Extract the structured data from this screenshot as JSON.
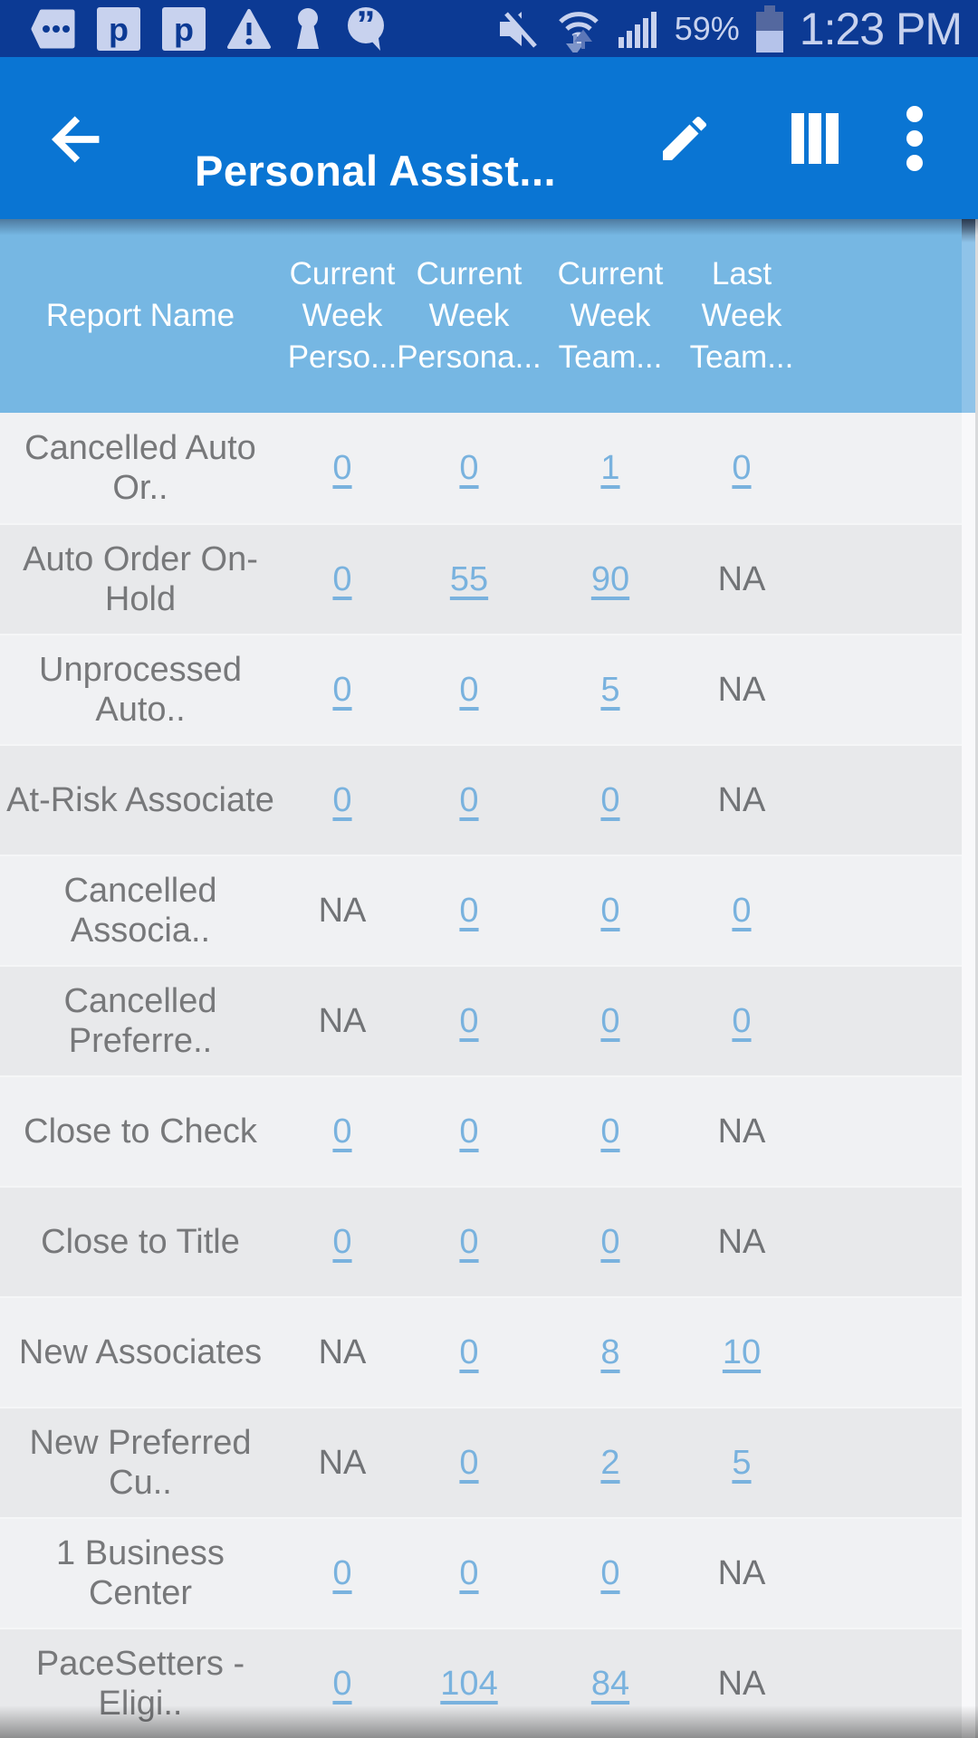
{
  "status_bar": {
    "time": "1:23 PM",
    "battery_percent": "59%",
    "left_icons": [
      "chat-dots",
      "p-app",
      "p-app",
      "warning",
      "keyhole",
      "quote-bubble"
    ],
    "right_icons": [
      "volume-muted",
      "wifi-updown",
      "signal-bars",
      "battery"
    ]
  },
  "app_bar": {
    "title": "Personal Assist...",
    "actions": [
      "edit",
      "view-columns",
      "overflow-menu"
    ]
  },
  "table": {
    "columns": [
      {
        "id": "report_name",
        "lines": [
          "Report Name"
        ]
      },
      {
        "id": "current_week_personal_a",
        "lines": [
          "Current",
          "Week",
          "Perso..."
        ]
      },
      {
        "id": "current_week_personal_b",
        "lines": [
          "Current",
          "Week",
          "Persona..."
        ]
      },
      {
        "id": "current_week_team",
        "lines": [
          "Current",
          "Week",
          "Team..."
        ]
      },
      {
        "id": "last_week_team",
        "lines": [
          "Last",
          "Week",
          "Team..."
        ]
      }
    ],
    "rows": [
      {
        "name": "Cancelled Auto Or..",
        "values": [
          {
            "v": "0",
            "link": true
          },
          {
            "v": "0",
            "link": true
          },
          {
            "v": "1",
            "link": true
          },
          {
            "v": "0",
            "link": true
          }
        ]
      },
      {
        "name": "Auto Order On-Hold",
        "values": [
          {
            "v": "0",
            "link": true
          },
          {
            "v": "55",
            "link": true
          },
          {
            "v": "90",
            "link": true
          },
          {
            "v": "NA",
            "link": false
          }
        ]
      },
      {
        "name": "Unprocessed Auto..",
        "values": [
          {
            "v": "0",
            "link": true
          },
          {
            "v": "0",
            "link": true
          },
          {
            "v": "5",
            "link": true
          },
          {
            "v": "NA",
            "link": false
          }
        ]
      },
      {
        "name": "At-Risk Associate",
        "values": [
          {
            "v": "0",
            "link": true
          },
          {
            "v": "0",
            "link": true
          },
          {
            "v": "0",
            "link": true
          },
          {
            "v": "NA",
            "link": false
          }
        ]
      },
      {
        "name": "Cancelled Associa..",
        "values": [
          {
            "v": "NA",
            "link": false
          },
          {
            "v": "0",
            "link": true
          },
          {
            "v": "0",
            "link": true
          },
          {
            "v": "0",
            "link": true
          }
        ]
      },
      {
        "name": "Cancelled Preferre..",
        "values": [
          {
            "v": "NA",
            "link": false
          },
          {
            "v": "0",
            "link": true
          },
          {
            "v": "0",
            "link": true
          },
          {
            "v": "0",
            "link": true
          }
        ]
      },
      {
        "name": "Close to Check",
        "values": [
          {
            "v": "0",
            "link": true
          },
          {
            "v": "0",
            "link": true
          },
          {
            "v": "0",
            "link": true
          },
          {
            "v": "NA",
            "link": false
          }
        ]
      },
      {
        "name": "Close to Title",
        "values": [
          {
            "v": "0",
            "link": true
          },
          {
            "v": "0",
            "link": true
          },
          {
            "v": "0",
            "link": true
          },
          {
            "v": "NA",
            "link": false
          }
        ]
      },
      {
        "name": "New Associates",
        "values": [
          {
            "v": "NA",
            "link": false
          },
          {
            "v": "0",
            "link": true
          },
          {
            "v": "8",
            "link": true
          },
          {
            "v": "10",
            "link": true
          }
        ]
      },
      {
        "name": "New Preferred Cu..",
        "values": [
          {
            "v": "NA",
            "link": false
          },
          {
            "v": "0",
            "link": true
          },
          {
            "v": "2",
            "link": true
          },
          {
            "v": "5",
            "link": true
          }
        ]
      },
      {
        "name": "1 Business Center",
        "values": [
          {
            "v": "0",
            "link": true
          },
          {
            "v": "0",
            "link": true
          },
          {
            "v": "0",
            "link": true
          },
          {
            "v": "NA",
            "link": false
          }
        ]
      },
      {
        "name": "PaceSetters - Eligi..",
        "values": [
          {
            "v": "0",
            "link": true
          },
          {
            "v": "104",
            "link": true
          },
          {
            "v": "84",
            "link": true
          },
          {
            "v": "NA",
            "link": false
          }
        ]
      }
    ]
  },
  "colors": {
    "status_bar_bg": "#0C3A94",
    "status_icon_tint": "#C8D2EE",
    "app_bar_bg": "#0A75D3",
    "table_header_bg": "#76B7E3",
    "row_odd_bg": "#F0F1F3",
    "row_even_bg": "#E8E9EB",
    "link_blue": "#79B2DE",
    "label_gray": "#77787A",
    "na_gray": "#717376"
  }
}
